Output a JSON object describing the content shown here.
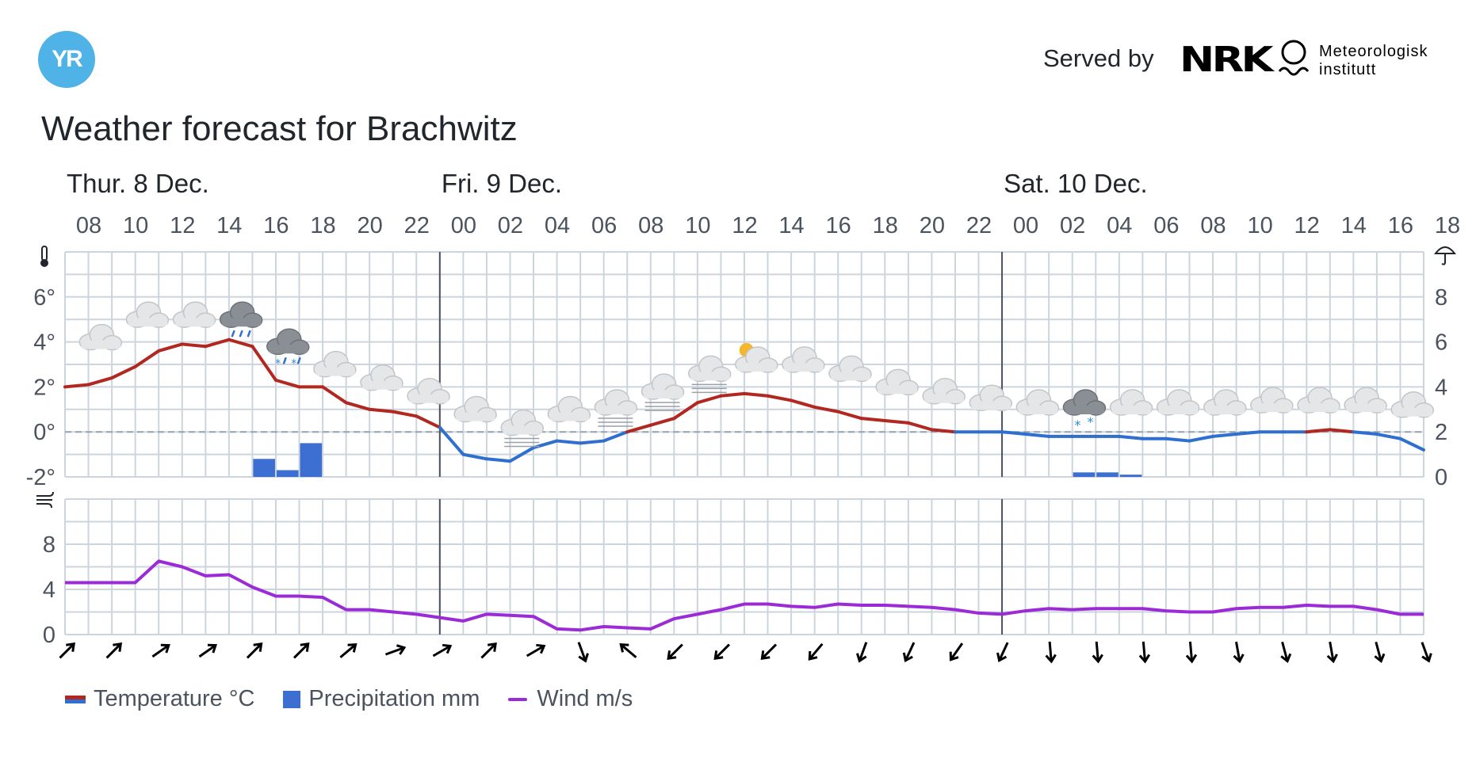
{
  "header": {
    "logo_text": "YR",
    "served_by": "Served by",
    "nrk": "NRK",
    "met_line1": "Meteorologisk",
    "met_line2": "institutt",
    "title": "Weather forecast for Brachwitz"
  },
  "legend": {
    "temperature": "Temperature °C",
    "precipitation": "Precipitation mm",
    "wind": "Wind m/s"
  },
  "colors": {
    "temp_warm": "#b0281f",
    "temp_cold": "#2f6fd0",
    "precip": "#3c6fd1",
    "wind": "#9b2bd6",
    "grid": "#ccd5dd",
    "day_line": "#4a535e"
  },
  "chart_data": {
    "type": "line",
    "days": [
      {
        "label": "Thur. 8 Dec.",
        "start_hour_index": 0
      },
      {
        "label": "Fri. 9 Dec.",
        "start_hour_index": 16
      },
      {
        "label": "Sat. 10 Dec.",
        "start_hour_index": 40
      }
    ],
    "x_hour_labels": [
      "08",
      "10",
      "12",
      "14",
      "16",
      "18",
      "20",
      "22",
      "00",
      "02",
      "04",
      "06",
      "08",
      "10",
      "12",
      "14",
      "16",
      "18",
      "20",
      "22",
      "00",
      "02",
      "04",
      "06",
      "08",
      "10",
      "12",
      "14",
      "16",
      "18"
    ],
    "temperature": {
      "unit": "°C",
      "ylim": [
        -2,
        8
      ],
      "ticks": [
        "-2°",
        "0°",
        "2°",
        "4°",
        "6°"
      ],
      "values": [
        2.0,
        2.1,
        2.4,
        2.9,
        3.6,
        3.9,
        3.8,
        4.1,
        3.8,
        2.3,
        2.0,
        2.0,
        1.3,
        1.0,
        0.9,
        0.7,
        0.2,
        -1.0,
        -1.2,
        -1.3,
        -0.7,
        -0.4,
        -0.5,
        -0.4,
        0.0,
        0.3,
        0.6,
        1.3,
        1.6,
        1.7,
        1.6,
        1.4,
        1.1,
        0.9,
        0.6,
        0.5,
        0.4,
        0.1,
        0.0,
        0.0,
        0.0,
        -0.1,
        -0.2,
        -0.2,
        -0.2,
        -0.2,
        -0.3,
        -0.3,
        -0.4,
        -0.2,
        -0.1,
        0.0,
        0.0,
        0.0,
        0.1,
        0.0,
        -0.1,
        -0.3,
        -0.8
      ]
    },
    "precipitation": {
      "unit": "mm",
      "ylim": [
        0,
        10
      ],
      "ticks": [
        "0",
        "2",
        "4",
        "6",
        "8"
      ],
      "bars": [
        {
          "hour_index": 8,
          "value": 0.8
        },
        {
          "hour_index": 9,
          "value": 0.3
        },
        {
          "hour_index": 10,
          "value": 1.5
        },
        {
          "hour_index": 43,
          "value": 0.2
        },
        {
          "hour_index": 44,
          "value": 0.2
        },
        {
          "hour_index": 45,
          "value": 0.1
        }
      ]
    },
    "wind": {
      "unit": "m/s",
      "ylim": [
        0,
        12
      ],
      "ticks": [
        "0",
        "4",
        "8"
      ],
      "values": [
        4.6,
        4.6,
        4.6,
        4.6,
        6.5,
        6.0,
        5.2,
        5.3,
        4.2,
        3.4,
        3.4,
        3.3,
        2.2,
        2.2,
        2.0,
        1.8,
        1.5,
        1.2,
        1.8,
        1.7,
        1.6,
        0.5,
        0.4,
        0.7,
        0.6,
        0.5,
        1.4,
        1.8,
        2.2,
        2.7,
        2.7,
        2.5,
        2.4,
        2.7,
        2.6,
        2.6,
        2.5,
        2.4,
        2.2,
        1.9,
        1.8,
        2.1,
        2.3,
        2.2,
        2.3,
        2.3,
        2.3,
        2.1,
        2.0,
        2.0,
        2.3,
        2.4,
        2.4,
        2.6,
        2.5,
        2.5,
        2.2,
        1.8,
        1.8
      ],
      "direction_arrows_deg": [
        45,
        45,
        55,
        55,
        45,
        45,
        50,
        70,
        60,
        45,
        60,
        160,
        310,
        225,
        225,
        225,
        220,
        200,
        205,
        215,
        205,
        175,
        175,
        175,
        175,
        170,
        165,
        170,
        165,
        160
      ]
    },
    "weather_symbols": [
      {
        "hour_index": 1,
        "temp": 4.0,
        "icon": "cloud"
      },
      {
        "hour_index": 3,
        "temp": 5.0,
        "icon": "cloud"
      },
      {
        "hour_index": 5,
        "temp": 5.0,
        "icon": "cloud"
      },
      {
        "hour_index": 7,
        "temp": 5.0,
        "icon": "rain-cloud"
      },
      {
        "hour_index": 9,
        "temp": 3.8,
        "icon": "sleet-cloud"
      },
      {
        "hour_index": 11,
        "temp": 2.8,
        "icon": "cloud"
      },
      {
        "hour_index": 13,
        "temp": 2.2,
        "icon": "cloud"
      },
      {
        "hour_index": 15,
        "temp": 1.6,
        "icon": "cloud"
      },
      {
        "hour_index": 17,
        "temp": 0.8,
        "icon": "cloud"
      },
      {
        "hour_index": 19,
        "temp": 0.2,
        "icon": "fog-cloud"
      },
      {
        "hour_index": 21,
        "temp": 0.8,
        "icon": "cloud"
      },
      {
        "hour_index": 23,
        "temp": 1.1,
        "icon": "fog-cloud"
      },
      {
        "hour_index": 25,
        "temp": 1.8,
        "icon": "fog-cloud"
      },
      {
        "hour_index": 27,
        "temp": 2.6,
        "icon": "fog-cloud"
      },
      {
        "hour_index": 29,
        "temp": 3.0,
        "icon": "partly-sunny-cloud"
      },
      {
        "hour_index": 31,
        "temp": 3.0,
        "icon": "cloud"
      },
      {
        "hour_index": 33,
        "temp": 2.6,
        "icon": "cloud"
      },
      {
        "hour_index": 35,
        "temp": 2.0,
        "icon": "cloud"
      },
      {
        "hour_index": 37,
        "temp": 1.6,
        "icon": "cloud"
      },
      {
        "hour_index": 39,
        "temp": 1.3,
        "icon": "cloud"
      },
      {
        "hour_index": 41,
        "temp": 1.1,
        "icon": "cloud"
      },
      {
        "hour_index": 43,
        "temp": 1.1,
        "icon": "snow-cloud"
      },
      {
        "hour_index": 45,
        "temp": 1.1,
        "icon": "cloud"
      },
      {
        "hour_index": 47,
        "temp": 1.1,
        "icon": "cloud"
      },
      {
        "hour_index": 49,
        "temp": 1.1,
        "icon": "cloud"
      },
      {
        "hour_index": 51,
        "temp": 1.2,
        "icon": "cloud"
      },
      {
        "hour_index": 53,
        "temp": 1.2,
        "icon": "cloud"
      },
      {
        "hour_index": 55,
        "temp": 1.2,
        "icon": "cloud"
      },
      {
        "hour_index": 57,
        "temp": 1.0,
        "icon": "cloud"
      }
    ]
  }
}
